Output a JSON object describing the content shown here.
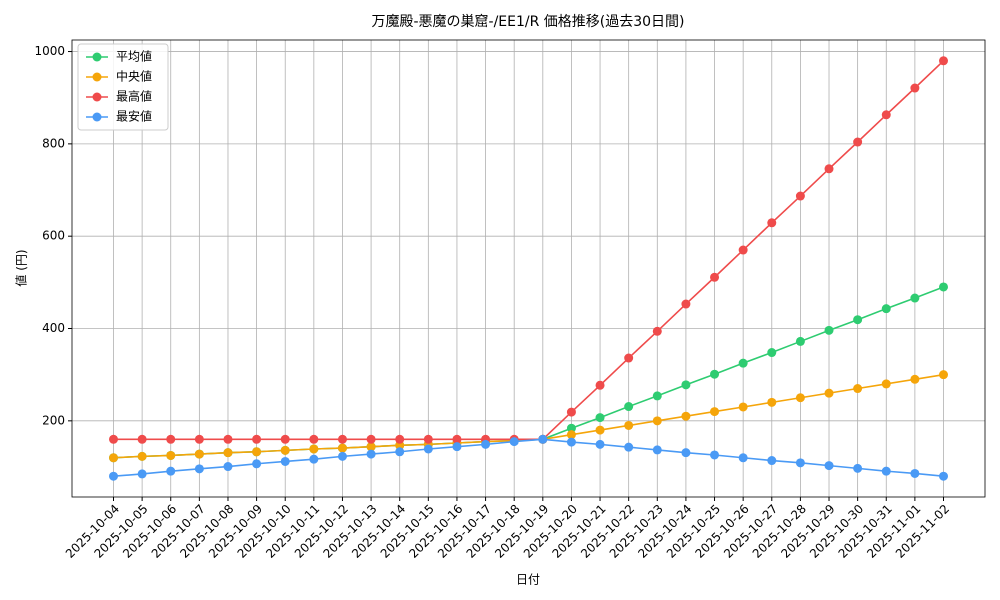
{
  "chart_data": {
    "type": "line",
    "title": "万魔殿-悪魔の巣窟-/EE1/R 価格推移(過去30日間)",
    "x_label": "日付",
    "y_label": "値 (円)",
    "categories": [
      "2025-10-04",
      "2025-10-05",
      "2025-10-06",
      "2025-10-07",
      "2025-10-08",
      "2025-10-09",
      "2025-10-10",
      "2025-10-11",
      "2025-10-12",
      "2025-10-13",
      "2025-10-14",
      "2025-10-15",
      "2025-10-16",
      "2025-10-17",
      "2025-10-18",
      "2025-10-19",
      "2025-10-20",
      "2025-10-21",
      "2025-10-22",
      "2025-10-23",
      "2025-10-24",
      "2025-10-25",
      "2025-10-26",
      "2025-10-27",
      "2025-10-28",
      "2025-10-29",
      "2025-10-30",
      "2025-10-31",
      "2025-11-01",
      "2025-11-02"
    ],
    "series": [
      {
        "name": "平均値",
        "color": "#2ecc71",
        "values": [
          120,
          123,
          125,
          128,
          131,
          133,
          136,
          139,
          141,
          144,
          147,
          149,
          152,
          155,
          157,
          160,
          184,
          207,
          231,
          254,
          278,
          301,
          325,
          348,
          372,
          396,
          419,
          443,
          466,
          490
        ]
      },
      {
        "name": "中央値",
        "color": "#f5a50a",
        "values": [
          120,
          123,
          125,
          128,
          131,
          133,
          136,
          139,
          141,
          144,
          147,
          149,
          152,
          155,
          157,
          160,
          170,
          180,
          190,
          200,
          210,
          220,
          230,
          240,
          250,
          260,
          270,
          280,
          290,
          300
        ]
      },
      {
        "name": "最高値",
        "color": "#ef4b4b",
        "values": [
          160,
          160,
          160,
          160,
          160,
          160,
          160,
          160,
          160,
          160,
          160,
          160,
          160,
          160,
          160,
          160,
          219,
          277,
          336,
          394,
          453,
          511,
          570,
          629,
          687,
          746,
          804,
          863,
          921,
          980
        ]
      },
      {
        "name": "最安値",
        "color": "#4a9af5",
        "values": [
          80,
          85,
          91,
          96,
          101,
          107,
          112,
          117,
          123,
          128,
          133,
          139,
          144,
          149,
          155,
          160,
          154,
          149,
          143,
          137,
          131,
          126,
          120,
          114,
          109,
          103,
          97,
          91,
          86,
          80
        ]
      }
    ],
    "ylim": [
      35,
      1025
    ],
    "yticks": [
      200,
      400,
      600,
      800,
      1000
    ],
    "grid": true,
    "legend": "upper-left"
  }
}
